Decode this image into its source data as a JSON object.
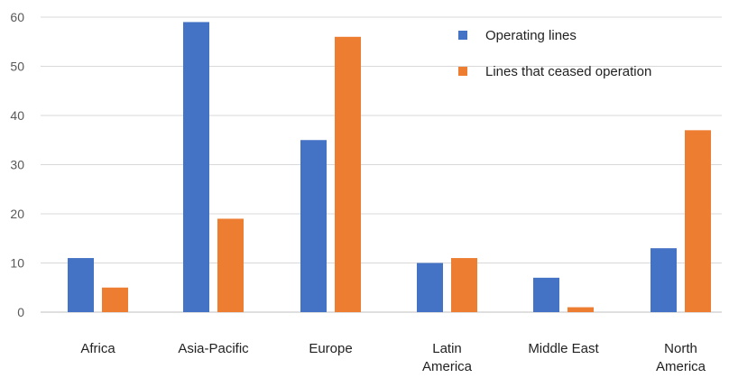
{
  "chart_data": {
    "type": "bar",
    "title": "",
    "xlabel": "",
    "ylabel": "",
    "ylim": [
      0,
      60
    ],
    "yticks": [
      0,
      10,
      20,
      30,
      40,
      50,
      60
    ],
    "grid": true,
    "legend_position": "top-right",
    "categories": [
      [
        "Africa"
      ],
      [
        "Asia-Pacific"
      ],
      [
        "Europe"
      ],
      [
        "Latin",
        "America"
      ],
      [
        "Middle East"
      ],
      [
        "North",
        "America"
      ]
    ],
    "series": [
      {
        "name": "Operating lines",
        "color": "#4472C4",
        "values": [
          11,
          59,
          35,
          10,
          7,
          13
        ]
      },
      {
        "name": "Lines that ceased operation",
        "color": "#ED7D31",
        "values": [
          5,
          19,
          56,
          11,
          1,
          37
        ]
      }
    ]
  }
}
